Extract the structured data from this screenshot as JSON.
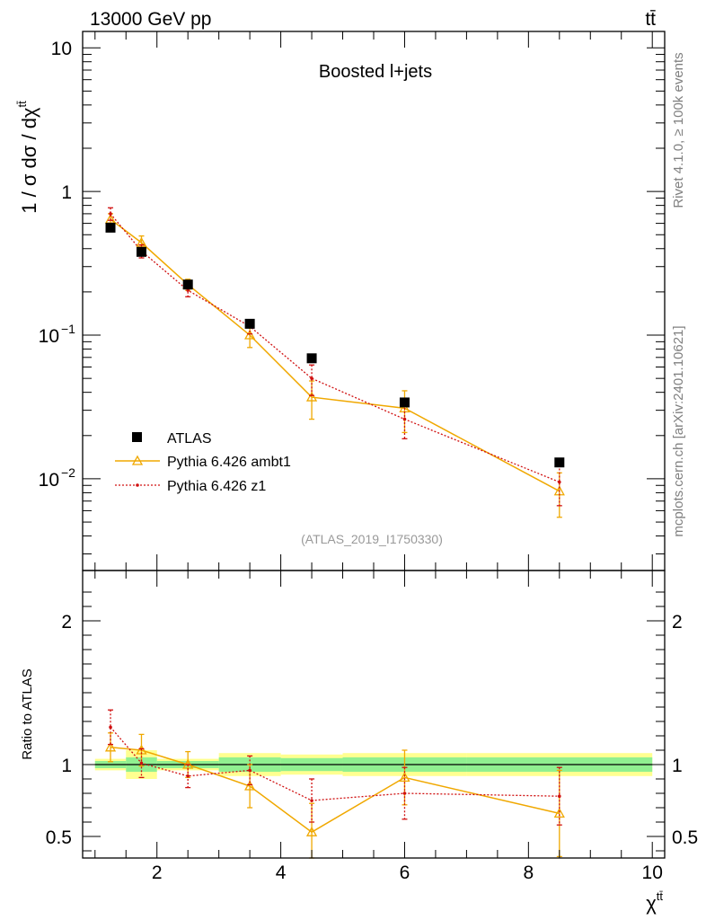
{
  "header": {
    "energy_label": "13000 GeV pp",
    "process_label": "tt̄",
    "rivet_label": "Rivet 4.1.0, ≥ 100k events",
    "mcplots_label": "mcplots.cern.ch [arXiv:2401.10621]"
  },
  "chart_data": [
    {
      "type": "scatter",
      "panel": "main",
      "title": "Boosted l+jets",
      "analysis_label": "(ATLAS_2019_I1750330)",
      "ylabel": "1 / σ dσ / dχ",
      "ylabel_sup": "tt̄",
      "xlabel": "χ",
      "xlabel_sup": "tt̄",
      "xlim": [
        0.8,
        10.2
      ],
      "ylim": [
        0.0023,
        13
      ],
      "yscale": "log",
      "yticks": [
        {
          "value": 0.01,
          "mantissa": "10",
          "exp": "−2"
        },
        {
          "value": 0.1,
          "mantissa": "10",
          "exp": "−1"
        },
        {
          "value": 1,
          "label": "1"
        },
        {
          "value": 10,
          "label": "10"
        }
      ],
      "xticks": [
        2,
        4,
        6,
        8,
        10
      ],
      "legend_position": "bottom-left",
      "series": [
        {
          "name": "ATLAS",
          "style": "data",
          "color": "#000000",
          "x": [
            1.25,
            1.75,
            2.5,
            3.5,
            4.5,
            6.0,
            8.5
          ],
          "y": [
            0.56,
            0.38,
            0.225,
            0.12,
            0.069,
            0.034,
            0.013
          ]
        },
        {
          "name": "Pythia 6.426 ambt1",
          "style": "solid-triangle",
          "color": "#f0a800",
          "x": [
            1.25,
            1.75,
            2.5,
            3.5,
            4.5,
            6.0,
            8.5
          ],
          "y": [
            0.64,
            0.44,
            0.225,
            0.1,
            0.037,
            0.031,
            0.0082
          ],
          "yerr": [
            0.06,
            0.05,
            0.02,
            0.018,
            0.011,
            0.01,
            0.0028
          ]
        },
        {
          "name": "Pythia 6.426 z1",
          "style": "dotted-dot",
          "color": "#d01010",
          "x": [
            1.25,
            1.75,
            2.5,
            3.5,
            4.5,
            6.0,
            8.5
          ],
          "y": [
            0.7,
            0.385,
            0.205,
            0.115,
            0.05,
            0.026,
            0.0095
          ],
          "yerr": [
            0.07,
            0.04,
            0.02,
            0.013,
            0.012,
            0.007,
            0.003
          ]
        }
      ]
    },
    {
      "type": "scatter",
      "panel": "ratio",
      "ylabel": "Ratio to ATLAS",
      "xlim": [
        0.8,
        10.2
      ],
      "ylim": [
        0.35,
        2.35
      ],
      "yticks": [
        0.5,
        1,
        2
      ],
      "xticks": [
        2,
        4,
        6,
        8,
        10
      ],
      "bands": [
        {
          "x0": 1.0,
          "x1": 1.5,
          "stat": 0.025,
          "total": 0.04
        },
        {
          "x0": 1.5,
          "x1": 2.0,
          "stat": 0.05,
          "total": 0.1
        },
        {
          "x0": 2.0,
          "x1": 3.0,
          "stat": 0.025,
          "total": 0.04
        },
        {
          "x0": 3.0,
          "x1": 4.0,
          "stat": 0.05,
          "total": 0.08
        },
        {
          "x0": 4.0,
          "x1": 5.0,
          "stat": 0.045,
          "total": 0.07
        },
        {
          "x0": 5.0,
          "x1": 7.0,
          "stat": 0.05,
          "total": 0.08
        },
        {
          "x0": 7.0,
          "x1": 10.0,
          "stat": 0.05,
          "total": 0.08
        }
      ],
      "series": [
        {
          "name": "Pythia 6.426 ambt1",
          "style": "solid-triangle",
          "color": "#f0a800",
          "x": [
            1.25,
            1.75,
            2.5,
            3.5,
            4.5,
            6.0,
            8.5
          ],
          "y": [
            1.12,
            1.1,
            1.0,
            0.85,
            0.53,
            0.91,
            0.66
          ],
          "yerr": [
            0.1,
            0.11,
            0.09,
            0.15,
            0.2,
            0.19,
            0.3
          ]
        },
        {
          "name": "Pythia 6.426 z1",
          "style": "dotted-dot",
          "color": "#d01010",
          "x": [
            1.25,
            1.75,
            2.5,
            3.5,
            4.5,
            6.0,
            8.5
          ],
          "y": [
            1.26,
            1.01,
            0.92,
            0.96,
            0.75,
            0.8,
            0.78
          ],
          "yerr": [
            0.12,
            0.1,
            0.08,
            0.1,
            0.15,
            0.18,
            0.2
          ]
        }
      ]
    }
  ]
}
